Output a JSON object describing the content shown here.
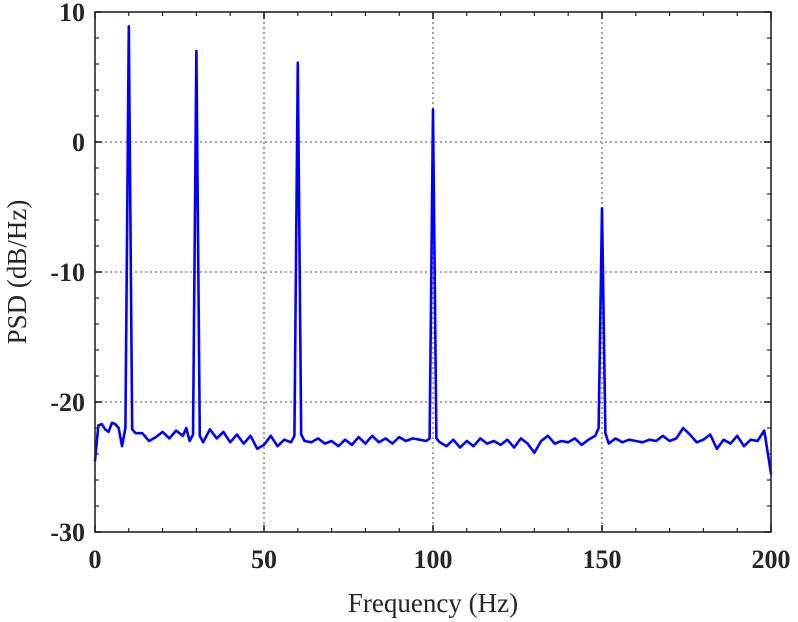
{
  "chart_data": {
    "type": "line",
    "title": "",
    "xlabel": "Frequency (Hz)",
    "ylabel": "PSD (dB/Hz)",
    "xlim": [
      0,
      200
    ],
    "ylim": [
      -30,
      10
    ],
    "x_ticks": [
      0,
      50,
      100,
      150,
      200
    ],
    "y_ticks": [
      -30,
      -20,
      -10,
      0,
      10
    ],
    "x_tick_labels": [
      "0",
      "50",
      "100",
      "150",
      "200"
    ],
    "y_tick_labels": [
      "-30",
      "-20",
      "-10",
      "0",
      "10"
    ],
    "grid": true,
    "grid_style": "dotted",
    "line_color": "#0000ff",
    "series": [
      {
        "x": [
          0,
          1,
          2,
          3,
          4,
          5,
          6,
          7,
          8,
          9,
          10,
          11,
          12,
          14,
          16,
          18,
          20,
          22,
          24,
          26,
          27,
          28,
          29,
          30,
          31,
          32,
          34,
          36,
          38,
          40,
          42,
          44,
          46,
          48,
          50,
          52,
          54,
          56,
          58,
          59,
          60,
          61,
          62,
          64,
          66,
          68,
          70,
          72,
          74,
          76,
          78,
          80,
          82,
          84,
          86,
          88,
          90,
          92,
          94,
          96,
          98,
          99,
          100,
          101,
          102,
          104,
          106,
          108,
          110,
          112,
          114,
          116,
          118,
          120,
          122,
          124,
          126,
          128,
          130,
          132,
          134,
          136,
          138,
          140,
          142,
          144,
          146,
          148,
          149,
          150,
          151,
          152,
          154,
          156,
          158,
          160,
          162,
          164,
          166,
          168,
          170,
          172,
          174,
          176,
          178,
          180,
          182,
          184,
          186,
          188,
          190,
          192,
          194,
          196,
          198,
          200
        ],
        "y": [
          -24.5,
          -21.8,
          -21.7,
          -22.1,
          -22.3,
          -21.6,
          -21.7,
          -22.0,
          -23.4,
          -22.0,
          8.9,
          -22.1,
          -22.4,
          -22.4,
          -23.0,
          -22.7,
          -22.3,
          -22.8,
          -22.2,
          -22.6,
          -22.0,
          -23.0,
          -22.5,
          7.0,
          -22.6,
          -23.1,
          -22.1,
          -22.8,
          -22.3,
          -23.1,
          -22.5,
          -23.2,
          -22.6,
          -23.6,
          -23.3,
          -22.6,
          -23.4,
          -22.9,
          -23.1,
          -22.6,
          6.1,
          -22.5,
          -23.0,
          -23.1,
          -22.8,
          -23.2,
          -23.0,
          -23.4,
          -22.9,
          -23.3,
          -22.7,
          -23.2,
          -22.6,
          -23.1,
          -22.8,
          -23.2,
          -22.7,
          -23.0,
          -22.8,
          -22.9,
          -23.0,
          -22.8,
          2.5,
          -22.8,
          -23.1,
          -23.4,
          -22.9,
          -23.5,
          -23.0,
          -23.4,
          -22.8,
          -23.2,
          -23.0,
          -23.3,
          -22.9,
          -23.5,
          -22.8,
          -23.2,
          -23.9,
          -23.0,
          -22.6,
          -23.2,
          -23.0,
          -23.1,
          -22.8,
          -23.3,
          -22.9,
          -22.6,
          -22.0,
          -5.1,
          -22.4,
          -23.2,
          -22.8,
          -23.1,
          -22.9,
          -23.0,
          -23.1,
          -22.9,
          -23.0,
          -22.6,
          -23.0,
          -22.8,
          -22.0,
          -22.5,
          -23.1,
          -22.9,
          -22.5,
          -23.6,
          -22.9,
          -23.2,
          -22.6,
          -23.4,
          -22.9,
          -23.0,
          -22.2,
          -25.5
        ]
      }
    ]
  }
}
